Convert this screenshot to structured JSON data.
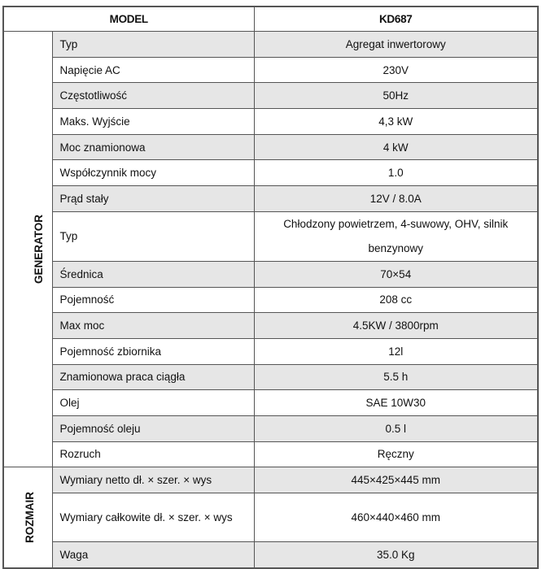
{
  "header": {
    "model_label": "MODEL",
    "model_value": "KD687"
  },
  "sections": [
    {
      "name": "GENERATOR",
      "rows": [
        {
          "label": "Typ",
          "value": "Agregat inwertorowy"
        },
        {
          "label": "Napięcie AC",
          "value": "230V"
        },
        {
          "label": "Częstotliwość",
          "value": "50Hz"
        },
        {
          "label": "Maks. Wyjście",
          "value": "4,3 kW"
        },
        {
          "label": "Moc znamionowa",
          "value": "4 kW"
        },
        {
          "label": "Współczynnik mocy",
          "value": "1.0"
        },
        {
          "label": "Prąd stały",
          "value": "12V / 8.0A"
        },
        {
          "label": "Typ",
          "value": "Chłodzony powietrzem, 4-suwowy, OHV, silnik benzynowy"
        },
        {
          "label": "Średnica",
          "value": "70×54"
        },
        {
          "label": "Pojemność",
          "value": "208 cc"
        },
        {
          "label": "Max moc",
          "value": "4.5KW / 3800rpm"
        },
        {
          "label": "Pojemność zbiornika",
          "value": "12l"
        },
        {
          "label": "Znamionowa praca ciągła",
          "value": "5.5 h"
        },
        {
          "label": "Olej",
          "value": "SAE 10W30"
        },
        {
          "label": "Pojemność oleju",
          "value": "0.5 l"
        },
        {
          "label": "Rozruch",
          "value": "Ręczny"
        }
      ]
    },
    {
      "name": "ROZMAIR",
      "rows": [
        {
          "label": "Wymiary netto dł. × szer. × wys",
          "value": "445×425×445 mm"
        },
        {
          "label": "Wymiary całkowite dł. × szer. × wys",
          "value": "460×440×460 mm"
        },
        {
          "label": "Waga",
          "value": "35.0 Kg"
        }
      ]
    }
  ],
  "colors": {
    "shaded_row": "#e6e6e6",
    "border": "#555555"
  }
}
